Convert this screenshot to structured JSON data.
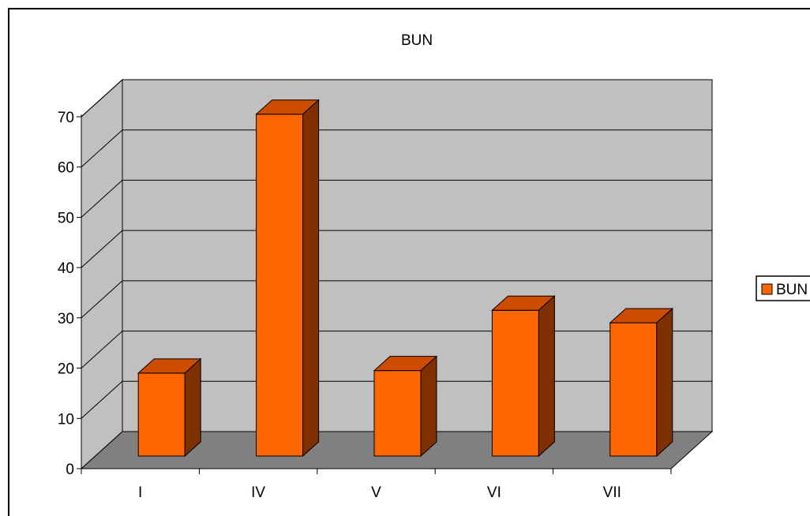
{
  "chart_data": {
    "type": "bar",
    "title": "BUN",
    "categories": [
      "I",
      "IV",
      "V",
      "VI",
      "VII"
    ],
    "series": [
      {
        "name": "BUN",
        "values": [
          16.5,
          68,
          17,
          29,
          26.5
        ]
      }
    ],
    "yticks": [
      "0",
      "10",
      "20",
      "30",
      "40",
      "50",
      "60",
      "70"
    ],
    "ylim": [
      0,
      70
    ],
    "grid": true,
    "legend_position": "right",
    "style": "3d",
    "colors": {
      "bar_front": "#ff6600",
      "bar_top": "#cc4c00",
      "bar_side": "#7f2f00",
      "back_wall": "#c0c0c0",
      "side_wall": "#c0c0c0",
      "floor": "#808080"
    }
  }
}
